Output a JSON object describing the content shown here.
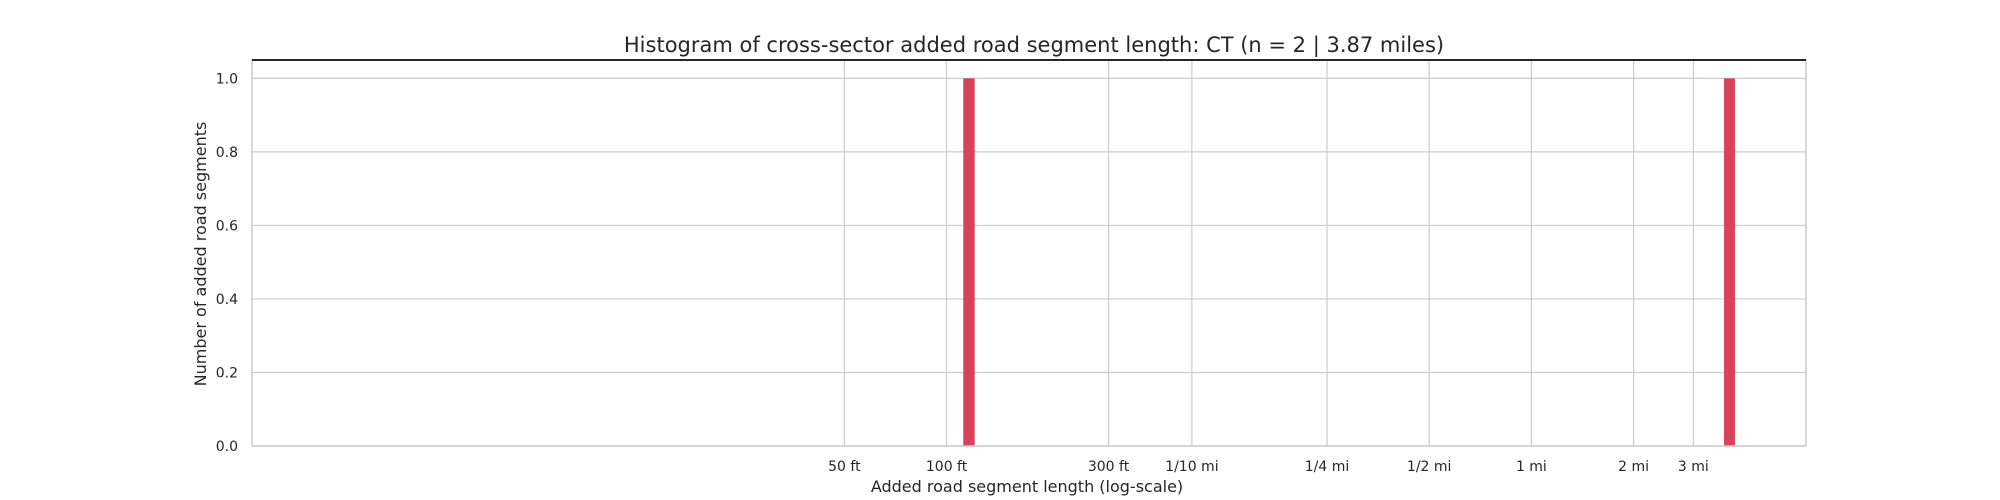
{
  "chart_data": {
    "type": "bar",
    "title": "Histogram of cross-sector added road segment length: CT (n = 2 | 3.87 miles)",
    "xlabel": "Added road segment length (log-scale)",
    "ylabel": "Number of added road segments",
    "x_scale": "log",
    "x_unit": "feet",
    "xlim_ft": [
      0.9,
      34000
    ],
    "ylim": [
      0,
      1.05
    ],
    "yticks": [
      0.0,
      0.2,
      0.4,
      0.6,
      0.8,
      1.0
    ],
    "ytick_labels": [
      "0.0",
      "0.2",
      "0.4",
      "0.6",
      "0.8",
      "1.0"
    ],
    "xticks": [
      {
        "value_ft": 50,
        "label": "50 ft"
      },
      {
        "value_ft": 100,
        "label": "100 ft"
      },
      {
        "value_ft": 300,
        "label": "300 ft"
      },
      {
        "value_ft": 528,
        "label": "1/10 mi"
      },
      {
        "value_ft": 1320,
        "label": "1/4 mi"
      },
      {
        "value_ft": 2640,
        "label": "1/2 mi"
      },
      {
        "value_ft": 5280,
        "label": "1 mi"
      },
      {
        "value_ft": 10560,
        "label": "2 mi"
      },
      {
        "value_ft": 15840,
        "label": "3 mi"
      }
    ],
    "grid": true,
    "bar_color": "#d9435a",
    "bars": [
      {
        "x_start_ft": 112,
        "x_end_ft": 121,
        "count": 1
      },
      {
        "x_start_ft": 19500,
        "x_end_ft": 21000,
        "count": 1
      }
    ]
  }
}
